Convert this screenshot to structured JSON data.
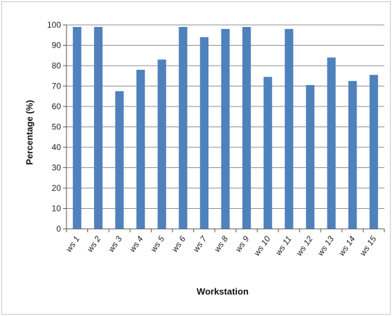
{
  "chart_data": {
    "type": "bar",
    "title": "",
    "xlabel": "Workstation",
    "ylabel": "Percentage (%)",
    "ylim": [
      0,
      100
    ],
    "yticks": [
      0,
      10,
      20,
      30,
      40,
      50,
      60,
      70,
      80,
      90,
      100
    ],
    "grid": "horizontal",
    "categories": [
      "ws 1",
      "ws 2",
      "ws 3",
      "ws 4",
      "ws 5",
      "ws 6",
      "ws 7",
      "ws 8",
      "ws 9",
      "ws 10",
      "ws 11",
      "ws 12",
      "ws 13",
      "ws 14",
      "ws 15"
    ],
    "values": [
      99,
      99,
      67.5,
      78,
      83,
      99,
      94,
      98,
      99,
      74.5,
      98,
      70.5,
      84,
      72.5,
      75.5
    ],
    "bar_color": "#4f81bd",
    "legend": "none"
  }
}
